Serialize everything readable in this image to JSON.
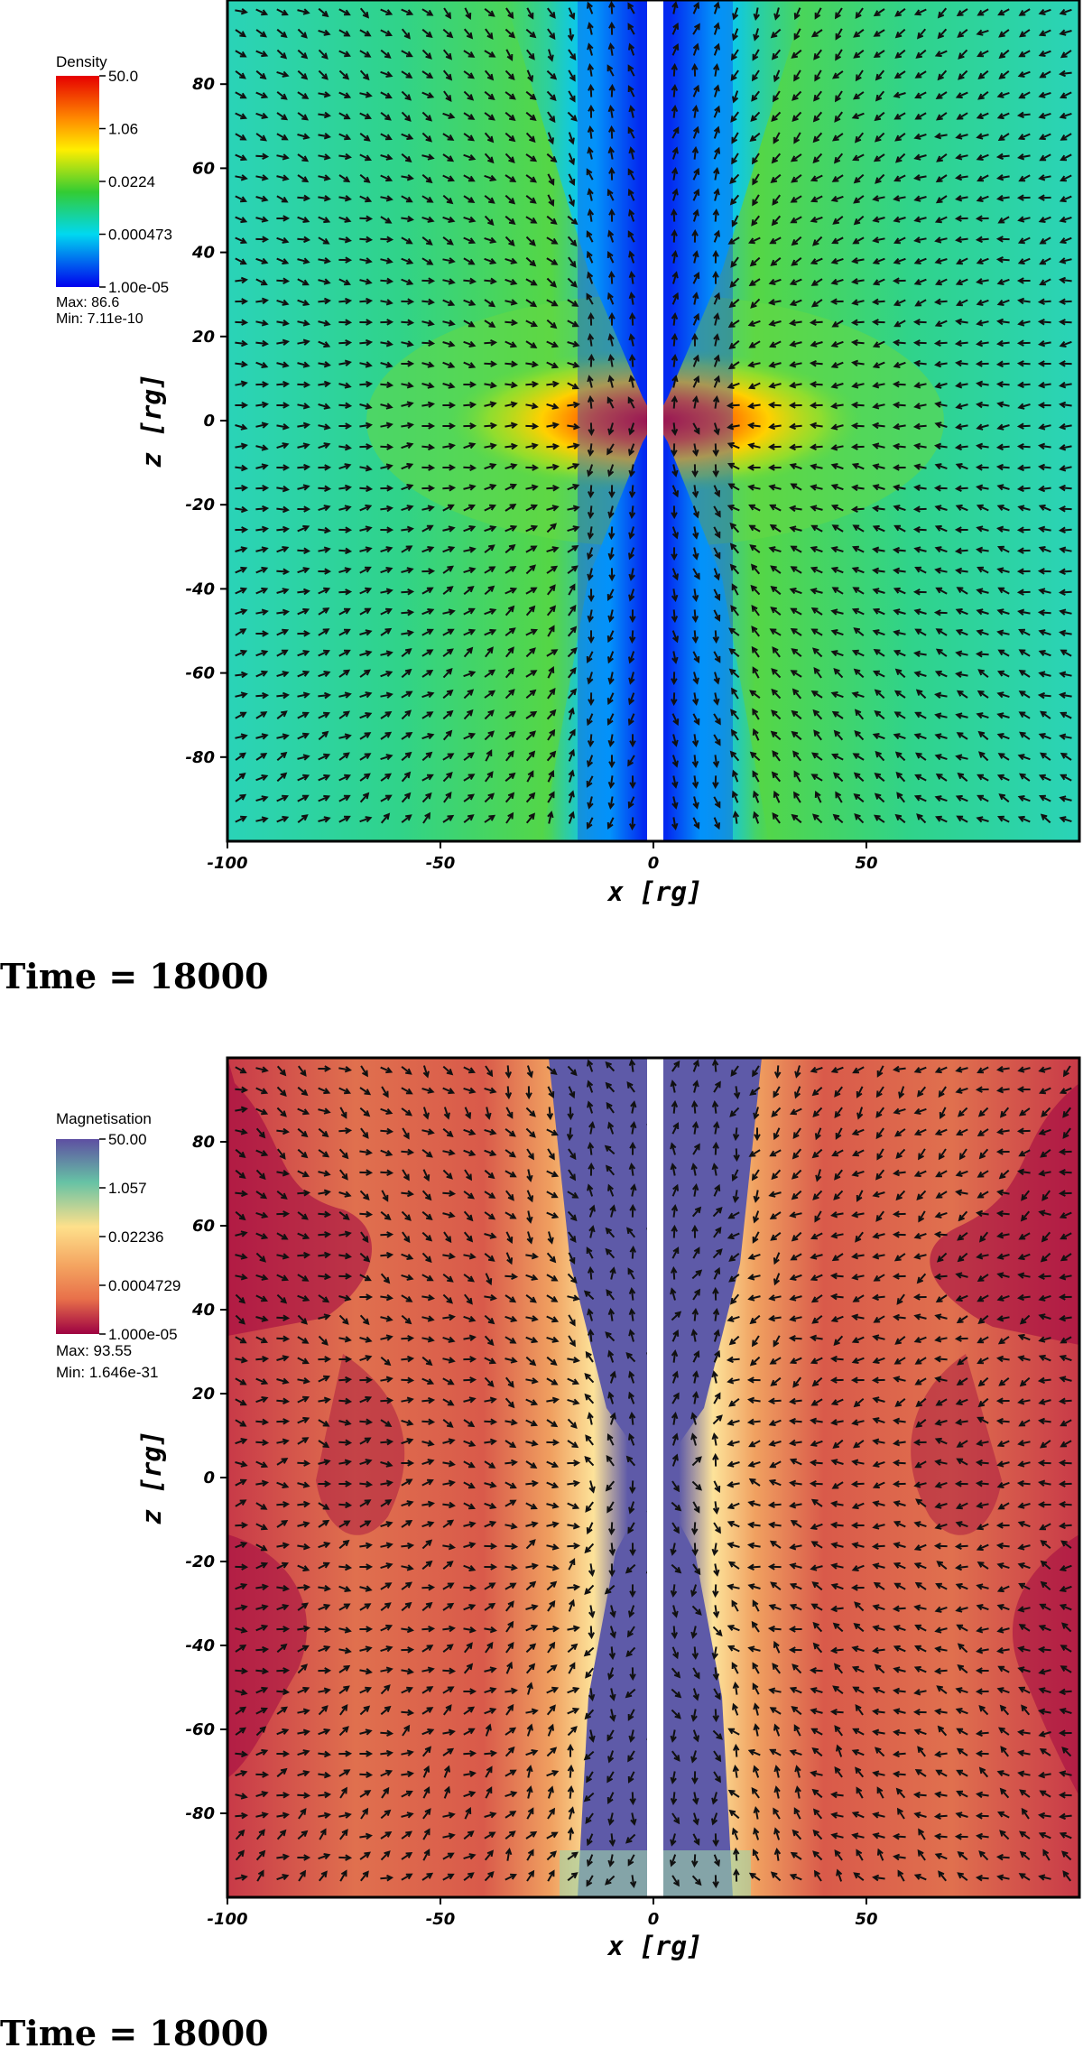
{
  "chart_data": [
    {
      "type": "heatmap",
      "variable": "Density",
      "colormap": "jet",
      "legend_title": "Density",
      "legend_ticks": [
        "50.0",
        "1.06",
        "0.0224",
        "0.000473",
        "1.00e-05"
      ],
      "max_label": "Max:  86.6",
      "min_label": "Min:  7.11e-10",
      "xlabel": "x  [rg]",
      "ylabel": "z  [rg]",
      "xlim": [
        -100,
        100
      ],
      "ylim": [
        -100,
        100
      ],
      "xticks": [
        -100,
        -50,
        0,
        50
      ],
      "yticks": [
        80,
        60,
        40,
        20,
        0,
        -20,
        -40,
        -60,
        -80
      ],
      "time_label": "Time = 18000",
      "colors": [
        "#0000ee",
        "#00d8f0",
        "#22d66a",
        "#33cc33",
        "#ffee00",
        "#ff8800",
        "#e60000"
      ]
    },
    {
      "type": "heatmap",
      "variable": "Magnetisation",
      "colormap": "spectral",
      "legend_title": "Magnetisation",
      "legend_ticks": [
        "50.00",
        "1.057",
        "0.02236",
        "0.0004729",
        "1.000e-05"
      ],
      "max_label": "Max:  93.55",
      "min_label": "Min:  1.646e-31",
      "xlabel": "x  [rg]",
      "ylabel": "z  [rg]",
      "xlim": [
        -100,
        100
      ],
      "ylim": [
        -100,
        100
      ],
      "xticks": [
        -100,
        -50,
        0,
        50
      ],
      "yticks": [
        80,
        60,
        40,
        20,
        0,
        -20,
        -40,
        -60,
        -80
      ],
      "time_label": "Time = 18000",
      "colors": [
        "#5e4fa2",
        "#66c2a5",
        "#fee08b",
        "#f4a460",
        "#e8704a",
        "#9e0142"
      ]
    }
  ]
}
